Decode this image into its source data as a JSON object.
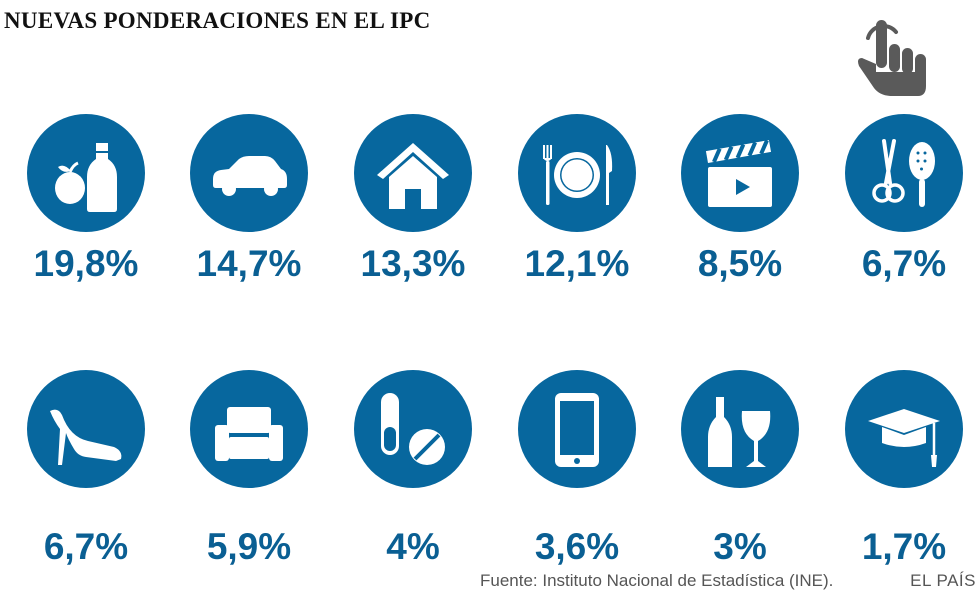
{
  "title": "NUEVAS PONDERACIONES EN EL IPC",
  "colors": {
    "accent": "#07679e",
    "value_text": "#0a5f93",
    "hand": "#5a5a5a"
  },
  "hand_icon": "pointer-hand-icon",
  "chart_data": {
    "type": "table",
    "categories": [
      {
        "icon": "food-icon",
        "value_label": "19,8%",
        "value": 19.8
      },
      {
        "icon": "car-icon",
        "value_label": "14,7%",
        "value": 14.7
      },
      {
        "icon": "house-icon",
        "value_label": "13,3%",
        "value": 13.3
      },
      {
        "icon": "restaurant-icon",
        "value_label": "12,1%",
        "value": 12.1
      },
      {
        "icon": "clapperboard-icon",
        "value_label": "8,5%",
        "value": 8.5
      },
      {
        "icon": "scissors-brush-icon",
        "value_label": "6,7%",
        "value": 6.7
      },
      {
        "icon": "high-heel-icon",
        "value_label": "6,7%",
        "value": 6.7
      },
      {
        "icon": "armchair-icon",
        "value_label": "5,9%",
        "value": 5.9
      },
      {
        "icon": "pills-icon",
        "value_label": "4%",
        "value": 4
      },
      {
        "icon": "smartphone-icon",
        "value_label": "3,6%",
        "value": 3.6
      },
      {
        "icon": "wine-bottle-icon",
        "value_label": "3%",
        "value": 3
      },
      {
        "icon": "graduation-cap-icon",
        "value_label": "1,7%",
        "value": 1.7
      }
    ]
  },
  "footer": {
    "source": "Fuente: Instituto Nacional de Estadística (INE).",
    "brand": "EL PAÍS"
  }
}
